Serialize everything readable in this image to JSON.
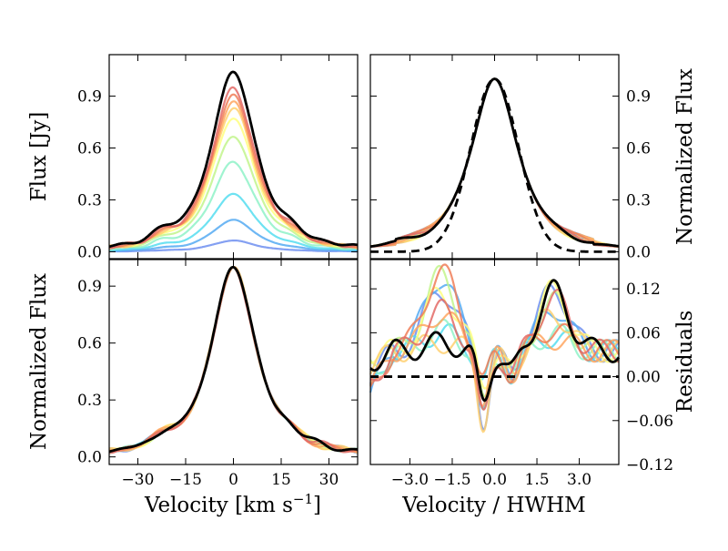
{
  "chart_data": [
    {
      "type": "line",
      "panel": "top-left",
      "ylabel": "Flux [Jy]",
      "xlim": [
        -39,
        39
      ],
      "ylim": [
        -0.04,
        1.14
      ],
      "yticks": [
        0.0,
        0.3,
        0.6,
        0.9
      ],
      "ytick_labels": [
        "0.0",
        "0.3",
        "0.6",
        "0.9"
      ],
      "series": [
        {
          "color": "#6f8ff0",
          "values": [
            0.065
          ]
        },
        {
          "color": "#55aaf2",
          "values": [
            0.185
          ]
        },
        {
          "color": "#55ddf0",
          "values": [
            0.335
          ]
        },
        {
          "color": "#8ff2c8",
          "values": [
            0.52
          ]
        },
        {
          "color": "#c2f58c",
          "values": [
            0.665
          ]
        },
        {
          "color": "#ffff80",
          "values": [
            0.77
          ]
        },
        {
          "color": "#ffd070",
          "values": [
            0.83
          ]
        },
        {
          "color": "#ffa660",
          "values": [
            0.87
          ]
        },
        {
          "color": "#f07e58",
          "values": [
            0.91
          ]
        },
        {
          "color": "#e36a66",
          "values": [
            0.95
          ]
        },
        {
          "color": "#000000",
          "values": [
            1.04
          ]
        }
      ]
    },
    {
      "type": "line",
      "panel": "top-right",
      "ylabel": "Normalized Flux",
      "xlim": [
        -4.4,
        4.4
      ],
      "ylim": [
        -0.04,
        1.14
      ],
      "yticks": [
        0.0,
        0.3,
        0.6,
        0.9
      ],
      "ytick_labels": [
        "0.0",
        "0.3",
        "0.6",
        "0.9"
      ],
      "reference": "dashed gaussian"
    },
    {
      "type": "line",
      "panel": "bottom-left",
      "xlabel": "Velocity [km s",
      "xlabel_sup": "−1",
      "xlabel_end": "]",
      "ylabel": "Normalized Flux",
      "xlim": [
        -39,
        39
      ],
      "ylim": [
        -0.04,
        1.04
      ],
      "xticks": [
        -30,
        -15,
        0,
        15,
        30
      ],
      "xtick_labels": [
        "−30",
        "−15",
        "0",
        "15",
        "30"
      ],
      "yticks": [
        0.0,
        0.3,
        0.6,
        0.9
      ],
      "ytick_labels": [
        "0.0",
        "0.3",
        "0.6",
        "0.9"
      ]
    },
    {
      "type": "line",
      "panel": "bottom-right",
      "xlabel": "Velocity / HWHM",
      "ylabel": "Residuals",
      "xlim": [
        -4.4,
        4.4
      ],
      "ylim": [
        -0.12,
        0.16
      ],
      "xticks": [
        -3.0,
        -1.5,
        0.0,
        1.5,
        3.0
      ],
      "xtick_labels": [
        "−3.0",
        "−1.5",
        "0.0",
        "1.5",
        "3.0"
      ],
      "yticks": [
        -0.12,
        -0.06,
        0.0,
        0.06,
        0.12
      ],
      "ytick_labels": [
        "−0.12",
        "−0.06",
        "0.00",
        "0.06",
        "0.12"
      ],
      "reference": "dashed zero line"
    }
  ]
}
